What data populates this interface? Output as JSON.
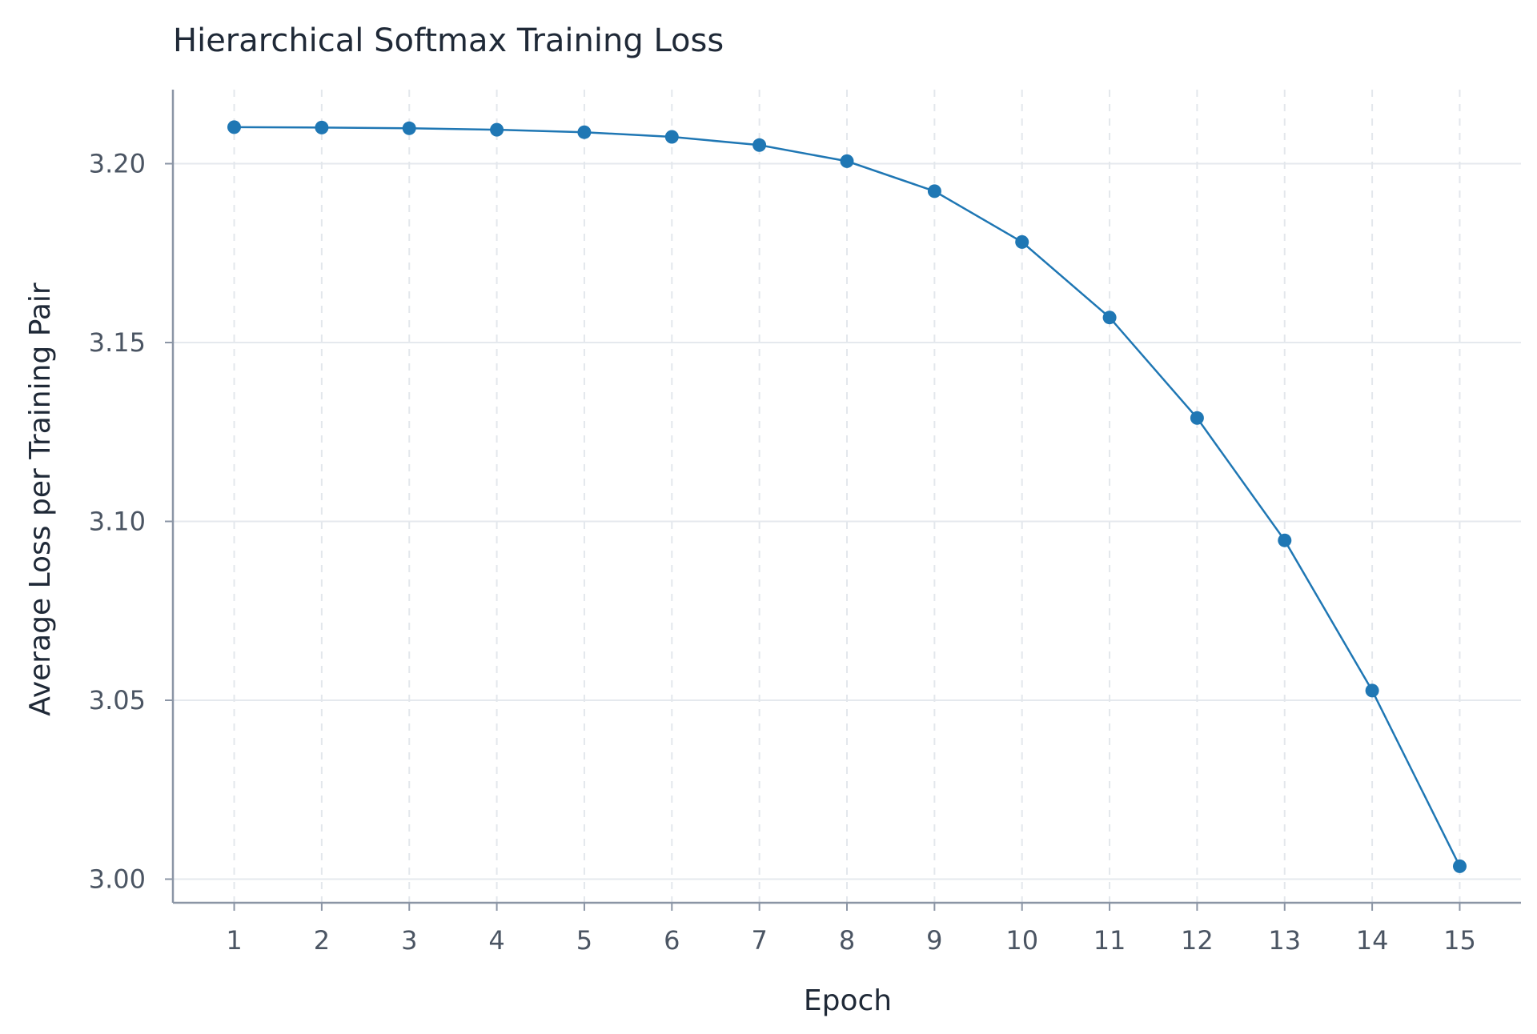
{
  "chart_data": {
    "type": "line",
    "title": "Hierarchical Softmax Training Loss",
    "xlabel": "Epoch",
    "ylabel": "Average Loss per Training Pair",
    "x": [
      1,
      2,
      3,
      4,
      5,
      6,
      7,
      8,
      9,
      10,
      11,
      12,
      13,
      14,
      15
    ],
    "x_tick_labels": [
      "1",
      "2",
      "3",
      "4",
      "5",
      "6",
      "7",
      "8",
      "9",
      "10",
      "11",
      "12",
      "13",
      "14",
      "15"
    ],
    "y_ticks": [
      3.0,
      3.05,
      3.1,
      3.15,
      3.2
    ],
    "y_tick_labels": [
      "3.00",
      "3.05",
      "3.10",
      "3.15",
      "3.20"
    ],
    "ylim": [
      2.9934,
      3.2207
    ],
    "xlim": [
      0.3,
      15.7
    ],
    "series": [
      {
        "values": [
          3.2102,
          3.2101,
          3.2099,
          3.2095,
          3.2088,
          3.2075,
          3.2052,
          3.2007,
          3.1923,
          3.1781,
          3.157,
          3.1289,
          3.0947,
          3.0527,
          3.0036
        ],
        "color": "#1f77b4"
      }
    ],
    "grid": true,
    "x_grid_style": "dashed",
    "y_grid_style": "solid"
  }
}
